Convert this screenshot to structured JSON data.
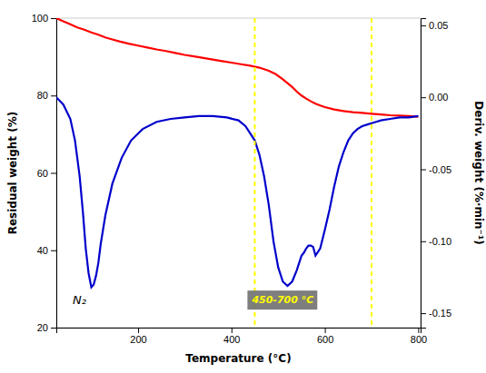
{
  "chart_data": {
    "type": "line",
    "xlabel": "Temperature (°C)",
    "ylabel": "Residual weight (%)",
    "y2label": "Deriv. weight (%·min⁻¹)",
    "xlim": [
      25,
      805
    ],
    "xticks": [
      200,
      400,
      600,
      800
    ],
    "ylim": [
      20,
      100
    ],
    "yticks": [
      20,
      40,
      60,
      80,
      100
    ],
    "y2lim": [
      -0.16,
      0.055
    ],
    "y2ticks": [
      0.05,
      {
        "value": 0,
        "label": "0.00"
      },
      -0.05,
      {
        "value": -0.1,
        "label": "-0.10"
      },
      -0.15
    ],
    "grid": false,
    "series": [
      {
        "color": "#ff0000",
        "axis": "y",
        "x": [
          25,
          40,
          55,
          70,
          85,
          100,
          115,
          130,
          145,
          160,
          180,
          200,
          220,
          240,
          260,
          280,
          300,
          320,
          340,
          360,
          380,
          400,
          420,
          440,
          460,
          480,
          495,
          510,
          520,
          530,
          540,
          550,
          560,
          570,
          580,
          590,
          600,
          620,
          640,
          660,
          680,
          700,
          720,
          740,
          760,
          780,
          800
        ],
        "values": [
          100,
          99.2,
          98.4,
          97.6,
          97.0,
          96.3,
          95.7,
          95.0,
          94.5,
          94.0,
          93.4,
          92.9,
          92.4,
          91.9,
          91.5,
          91.0,
          90.5,
          90.1,
          89.7,
          89.3,
          88.9,
          88.5,
          88.1,
          87.7,
          87.2,
          86.4,
          85.5,
          84.2,
          83.2,
          82.2,
          81.0,
          80.0,
          79.2,
          78.5,
          77.9,
          77.4,
          77.0,
          76.4,
          76.0,
          75.7,
          75.5,
          75.3,
          75.1,
          74.9,
          74.8,
          74.7,
          74.5
        ]
      },
      {
        "color": "#0000cc",
        "axis": "y2",
        "x": [
          25,
          40,
          55,
          65,
          75,
          82,
          88,
          94,
          100,
          105,
          110,
          115,
          120,
          130,
          145,
          165,
          185,
          210,
          240,
          270,
          300,
          330,
          360,
          390,
          415,
          430,
          440,
          450,
          460,
          470,
          480,
          490,
          500,
          510,
          520,
          530,
          540,
          545,
          550,
          555,
          560,
          565,
          570,
          575,
          580,
          590,
          600,
          610,
          620,
          630,
          640,
          650,
          660,
          670,
          680,
          690,
          700,
          710,
          720,
          740,
          760,
          780,
          800
        ],
        "values": [
          0.0,
          -0.005,
          -0.015,
          -0.03,
          -0.055,
          -0.08,
          -0.105,
          -0.122,
          -0.132,
          -0.13,
          -0.124,
          -0.115,
          -0.102,
          -0.082,
          -0.06,
          -0.042,
          -0.03,
          -0.022,
          -0.017,
          -0.015,
          -0.014,
          -0.013,
          -0.013,
          -0.014,
          -0.016,
          -0.02,
          -0.025,
          -0.03,
          -0.04,
          -0.055,
          -0.075,
          -0.1,
          -0.118,
          -0.128,
          -0.131,
          -0.128,
          -0.12,
          -0.115,
          -0.11,
          -0.108,
          -0.105,
          -0.103,
          -0.103,
          -0.104,
          -0.11,
          -0.105,
          -0.092,
          -0.078,
          -0.062,
          -0.048,
          -0.038,
          -0.03,
          -0.025,
          -0.022,
          -0.02,
          -0.019,
          -0.018,
          -0.017,
          -0.016,
          -0.015,
          -0.014,
          -0.014,
          -0.013
        ]
      }
    ],
    "vlines": [
      {
        "value": 450,
        "color": "#ffff00"
      },
      {
        "value": 700,
        "color": "#ffff00"
      }
    ],
    "annotations": [
      {
        "text": "450-700 °C",
        "x": 510,
        "y": 27,
        "color": "#ffff00",
        "background": "#707070"
      },
      {
        "text": "N₂",
        "x": 60,
        "y": 27
      }
    ]
  }
}
